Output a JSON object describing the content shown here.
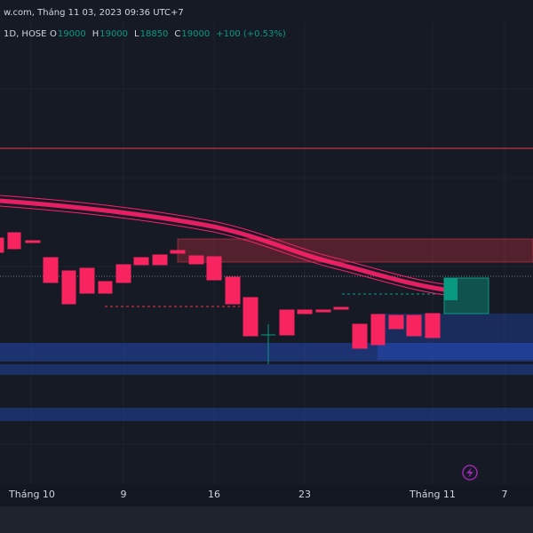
{
  "header": {
    "title": "w.com, Tháng 11 03, 2023 09:36 UTC+7",
    "symbol": "1D, HOSE",
    "ohlc": [
      {
        "key": "O",
        "value": "19000"
      },
      {
        "key": "H",
        "value": "19000"
      },
      {
        "key": "L",
        "value": "18850"
      },
      {
        "key": "C",
        "value": "19000"
      }
    ],
    "change": "+100 (+0.53%)"
  },
  "x_axis": {
    "labels": [
      "Tháng 10",
      "9",
      "16",
      "23",
      "Tháng 11",
      "7"
    ]
  }
}
